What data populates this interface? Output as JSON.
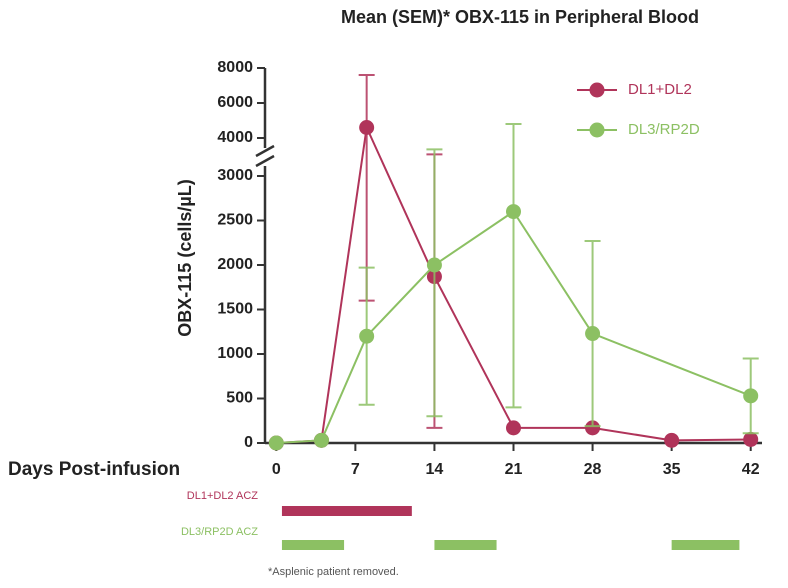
{
  "chart_data": {
    "type": "line",
    "title": "Mean (SEM)* OBX-115 in Peripheral Blood",
    "ylabel": "OBX-115 (cells/µL)",
    "xlabel": "Days Post-infusion",
    "footnote": "*Asplenic patient removed.",
    "xlim": [
      -1,
      43
    ],
    "xticks": [
      0,
      7,
      14,
      21,
      28,
      35,
      42
    ],
    "y_segments": [
      {
        "ylim": [
          0,
          3000
        ],
        "yticks": [
          0,
          500,
          1000,
          1500,
          2000,
          2500,
          3000
        ]
      },
      {
        "ylim": [
          4000,
          8000
        ],
        "yticks": [
          4000,
          6000,
          8000
        ]
      }
    ],
    "series": [
      {
        "name": "DL1+DL2",
        "color": "#b0345a",
        "x": [
          0,
          4,
          8,
          14,
          21,
          28,
          35,
          42
        ],
        "values": [
          0,
          30,
          4600,
          1870,
          170,
          170,
          30,
          40
        ],
        "errors": [
          0,
          0,
          3000,
          1700,
          0,
          0,
          0,
          0
        ]
      },
      {
        "name": "DL3/RP2D",
        "color": "#8cc063",
        "x": [
          0,
          4,
          8,
          14,
          21,
          28,
          42
        ],
        "values": [
          0,
          30,
          1200,
          2000,
          2600,
          1230,
          530
        ],
        "errors": [
          0,
          0,
          770,
          1700,
          2200,
          1040,
          420
        ]
      }
    ],
    "acz": [
      {
        "label": "DL1+DL2 ACZ",
        "color": "#b0345a",
        "ranges": [
          [
            0.5,
            12
          ]
        ]
      },
      {
        "label": "DL3/RP2D ACZ",
        "color": "#8cc063",
        "ranges": [
          [
            0.5,
            6
          ],
          [
            14,
            19.5
          ],
          [
            35,
            41
          ]
        ]
      }
    ]
  }
}
